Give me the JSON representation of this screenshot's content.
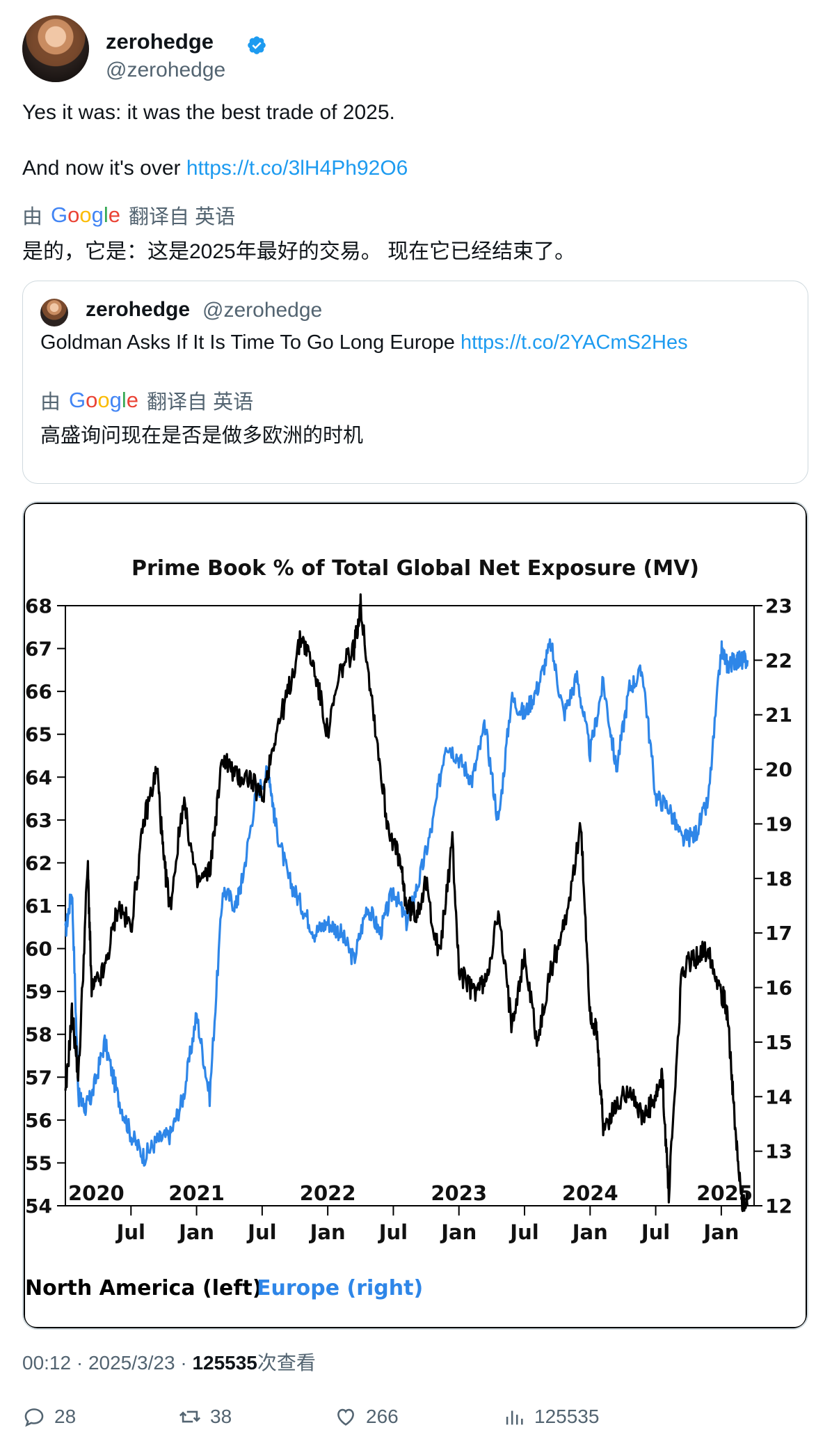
{
  "author": {
    "name": "zerohedge",
    "handle": "@zerohedge"
  },
  "tweet": {
    "line1": "Yes it was: it was the best trade of 2025.",
    "line2_text": "And now it's over ",
    "line2_link": "https://t.co/3lH4Ph92O6",
    "translate_prefix": "由",
    "translate_suffix": "翻译自 英语",
    "translation": "是的，它是：这是2025年最好的交易。 现在它已经结束了。"
  },
  "quote": {
    "name": "zerohedge",
    "handle": "@zerohedge",
    "text": "Goldman Asks If It Is Time To Go Long Europe ",
    "link": "https://t.co/2YACmS2Hes",
    "translate_prefix": "由",
    "translate_suffix": "翻译自 英语",
    "translation": "高盛询问现在是否是做多欧洲的时机"
  },
  "meta": {
    "time": "00:12",
    "separator": " · ",
    "date": "2025/3/23",
    "views": "125535",
    "views_suffix": "次查看"
  },
  "actions": {
    "replies": "28",
    "reposts": "38",
    "likes": "266",
    "views": "125535"
  },
  "colors": {
    "accent": "#1d9bf0",
    "europe_series": "#2e86e8",
    "na_series": "#000000"
  },
  "chart_data": {
    "type": "line",
    "title": "Prime Book % of Total Global Net Exposure (MV)",
    "x_year_labels": [
      "2020",
      "2021",
      "2022",
      "2023",
      "2024",
      "2025"
    ],
    "x_month_labels": [
      "Jul",
      "Jan",
      "Jul",
      "Jan",
      "Jul",
      "Jan",
      "Jul",
      "Jan",
      "Jul",
      "Jan"
    ],
    "x_range": [
      2020.0,
      2025.25
    ],
    "y_left_ticks": [
      "54",
      "55",
      "56",
      "57",
      "58",
      "59",
      "60",
      "61",
      "62",
      "63",
      "64",
      "65",
      "66",
      "67",
      "68"
    ],
    "y_left_range": [
      54,
      68
    ],
    "y_right_ticks": [
      "12",
      "13",
      "14",
      "15",
      "16",
      "17",
      "18",
      "19",
      "20",
      "21",
      "22",
      "23"
    ],
    "y_right_range": [
      12,
      23
    ],
    "legend": [
      {
        "name": "North America (left)",
        "color": "#000000"
      },
      {
        "name": "Europe (right)",
        "color": "#2e86e8"
      }
    ],
    "series": [
      {
        "name": "North America (left)",
        "axis": "left",
        "x": [
          2020.0,
          2020.05,
          2020.1,
          2020.17,
          2020.2,
          2020.3,
          2020.4,
          2020.5,
          2020.6,
          2020.7,
          2020.75,
          2020.8,
          2020.9,
          2021.0,
          2021.1,
          2021.2,
          2021.3,
          2021.4,
          2021.5,
          2021.6,
          2021.7,
          2021.8,
          2021.9,
          2022.0,
          2022.1,
          2022.2,
          2022.25,
          2022.35,
          2022.45,
          2022.55,
          2022.6,
          2022.67,
          2022.75,
          2022.85,
          2022.95,
          2023.0,
          2023.1,
          2023.2,
          2023.3,
          2023.4,
          2023.5,
          2023.6,
          2023.7,
          2023.8,
          2023.93,
          2024.0,
          2024.05,
          2024.1,
          2024.2,
          2024.3,
          2024.4,
          2024.5,
          2024.55,
          2024.6,
          2024.7,
          2024.8,
          2024.9,
          2025.0,
          2025.05,
          2025.1,
          2025.15,
          2025.2
        ],
        "values": [
          56.5,
          58.5,
          57.0,
          62.0,
          59.0,
          59.5,
          61.0,
          60.5,
          63.0,
          64.2,
          62.0,
          61.0,
          63.5,
          61.5,
          61.8,
          64.5,
          64.0,
          64.0,
          63.5,
          65.0,
          66.0,
          67.3,
          66.5,
          65.0,
          66.5,
          67.0,
          68.0,
          65.5,
          63.0,
          62.0,
          61.0,
          60.8,
          61.5,
          59.8,
          62.5,
          59.5,
          59.0,
          59.2,
          60.8,
          58.3,
          59.8,
          57.8,
          59.5,
          60.5,
          62.8,
          58.5,
          58.0,
          55.8,
          56.3,
          56.8,
          56.0,
          56.5,
          57.0,
          54.3,
          59.5,
          59.8,
          60.0,
          59.0,
          58.5,
          56.0,
          54.2,
          54.0
        ]
      },
      {
        "name": "Europe (right)",
        "axis": "right",
        "x": [
          2020.0,
          2020.05,
          2020.1,
          2020.15,
          2020.2,
          2020.3,
          2020.4,
          2020.5,
          2020.6,
          2020.7,
          2020.8,
          2020.9,
          2021.0,
          2021.1,
          2021.2,
          2021.3,
          2021.35,
          2021.45,
          2021.55,
          2021.6,
          2021.7,
          2021.8,
          2021.9,
          2022.0,
          2022.1,
          2022.2,
          2022.3,
          2022.4,
          2022.5,
          2022.6,
          2022.7,
          2022.8,
          2022.9,
          2023.0,
          2023.1,
          2023.2,
          2023.3,
          2023.4,
          2023.5,
          2023.6,
          2023.7,
          2023.8,
          2023.9,
          2024.0,
          2024.1,
          2024.2,
          2024.3,
          2024.4,
          2024.5,
          2024.6,
          2024.7,
          2024.8,
          2024.9,
          2025.0,
          2025.05,
          2025.1,
          2025.15,
          2025.2
        ],
        "values": [
          17.0,
          17.8,
          14.0,
          13.8,
          14.0,
          15.0,
          14.0,
          13.3,
          12.9,
          13.2,
          13.3,
          14.0,
          15.5,
          14.0,
          17.8,
          17.5,
          18.0,
          19.5,
          20.0,
          19.0,
          18.0,
          17.5,
          17.0,
          17.2,
          17.0,
          16.5,
          17.5,
          17.0,
          17.8,
          17.2,
          18.0,
          19.0,
          20.5,
          20.2,
          19.8,
          20.8,
          19.0,
          21.3,
          21.0,
          21.5,
          22.3,
          21.0,
          21.7,
          20.3,
          21.6,
          20.0,
          21.5,
          21.8,
          19.5,
          19.3,
          18.7,
          18.8,
          19.4,
          22.2,
          21.9,
          22.0,
          22.0,
          22.0
        ]
      }
    ]
  }
}
